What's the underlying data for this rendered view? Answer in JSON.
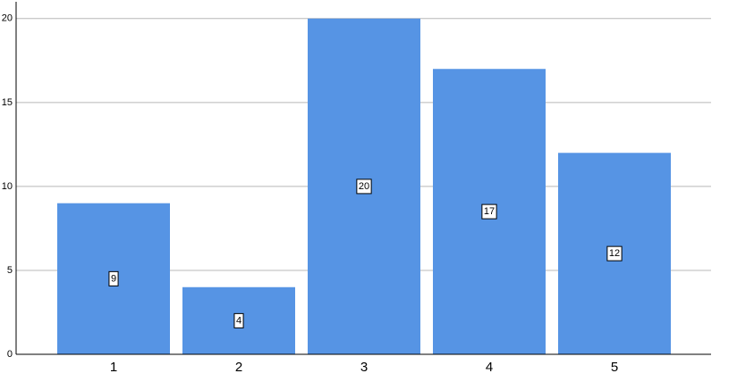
{
  "chart_data": {
    "type": "bar",
    "categories": [
      "1",
      "2",
      "3",
      "4",
      "5"
    ],
    "values": [
      9,
      4,
      20,
      17,
      12
    ],
    "color": "#5694e4",
    "ylim": [
      0,
      21
    ],
    "yticks": [
      0,
      5,
      10,
      15,
      20
    ],
    "grid": true,
    "data_labels": true
  }
}
